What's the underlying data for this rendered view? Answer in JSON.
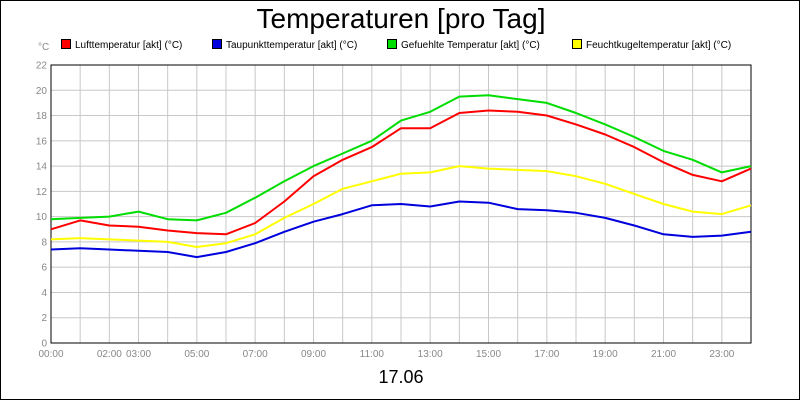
{
  "chart_data": {
    "type": "line",
    "title": "Temperaturen [pro Tag]",
    "unit_label": "°C",
    "xlabel": "17.06",
    "xlim": [
      0,
      24
    ],
    "ylim": [
      0,
      22
    ],
    "y_ticks": [
      0,
      2,
      4,
      6,
      8,
      10,
      12,
      14,
      16,
      18,
      20,
      22
    ],
    "x_ticks": [
      {
        "label": "00:00",
        "hour": 0
      },
      {
        "label": "02:00",
        "hour": 2
      },
      {
        "label": "03:00",
        "hour": 3
      },
      {
        "label": "05:00",
        "hour": 5
      },
      {
        "label": "07:00",
        "hour": 7
      },
      {
        "label": "09:00",
        "hour": 9
      },
      {
        "label": "11:00",
        "hour": 11
      },
      {
        "label": "13:00",
        "hour": 13
      },
      {
        "label": "15:00",
        "hour": 15
      },
      {
        "label": "17:00",
        "hour": 17
      },
      {
        "label": "19:00",
        "hour": 19
      },
      {
        "label": "21:00",
        "hour": 21
      },
      {
        "label": "23:00",
        "hour": 23
      }
    ],
    "grid": true,
    "legend_position": "top",
    "x": [
      0,
      1,
      2,
      3,
      4,
      5,
      6,
      7,
      8,
      9,
      10,
      11,
      12,
      13,
      14,
      15,
      16,
      17,
      18,
      19,
      20,
      21,
      22,
      23,
      24
    ],
    "series": [
      {
        "name": "Lufttemperatur [akt] (°C)",
        "color": "#ff0000",
        "values": [
          9.0,
          9.7,
          9.3,
          9.2,
          8.9,
          8.7,
          8.6,
          9.5,
          11.2,
          13.2,
          14.5,
          15.5,
          17.0,
          17.0,
          18.2,
          18.4,
          18.3,
          18.0,
          17.3,
          16.5,
          15.5,
          14.3,
          13.3,
          12.8,
          13.8
        ]
      },
      {
        "name": "Taupunkttemperatur [akt] (°C)",
        "color": "#0000dd",
        "values": [
          7.4,
          7.5,
          7.4,
          7.3,
          7.2,
          6.8,
          7.2,
          7.9,
          8.8,
          9.6,
          10.2,
          10.9,
          11.0,
          10.8,
          11.2,
          11.1,
          10.6,
          10.5,
          10.3,
          9.9,
          9.3,
          8.6,
          8.4,
          8.5,
          8.8
        ]
      },
      {
        "name": "Gefuehlte Temperatur [akt] (°C)",
        "color": "#00dd00",
        "values": [
          9.8,
          9.9,
          10.0,
          10.4,
          9.8,
          9.7,
          10.3,
          11.5,
          12.8,
          14.0,
          15.0,
          16.0,
          17.6,
          18.3,
          19.5,
          19.6,
          19.3,
          19.0,
          18.2,
          17.3,
          16.3,
          15.2,
          14.5,
          13.5,
          14.0
        ]
      },
      {
        "name": "Feuchtkugeltemperatur [akt] (°C)",
        "color": "#ffff00",
        "values": [
          8.2,
          8.3,
          8.2,
          8.1,
          8.0,
          7.6,
          7.9,
          8.6,
          9.9,
          11.0,
          12.2,
          12.8,
          13.4,
          13.5,
          14.0,
          13.8,
          13.7,
          13.6,
          13.2,
          12.6,
          11.8,
          11.0,
          10.4,
          10.2,
          10.9
        ]
      }
    ]
  }
}
